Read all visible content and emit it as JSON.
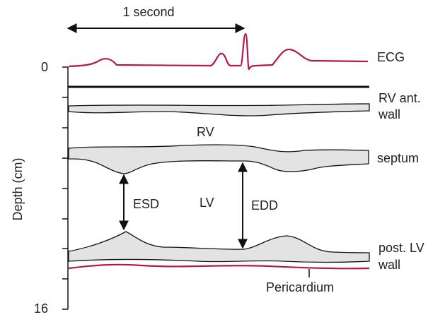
{
  "header": {
    "time_scale": "1 second"
  },
  "axis": {
    "label": "Depth (cm)",
    "top": "0",
    "bottom": "16"
  },
  "labels": {
    "ecg": "ECG",
    "rv_wall": [
      "RV ant.",
      "wall"
    ],
    "rv": "RV",
    "septum": "septum",
    "esd": "ESD",
    "lv": "LV",
    "edd": "EDD",
    "post_lv_wall": [
      "post. LV",
      "wall"
    ],
    "pericardium": "Pericardium"
  }
}
